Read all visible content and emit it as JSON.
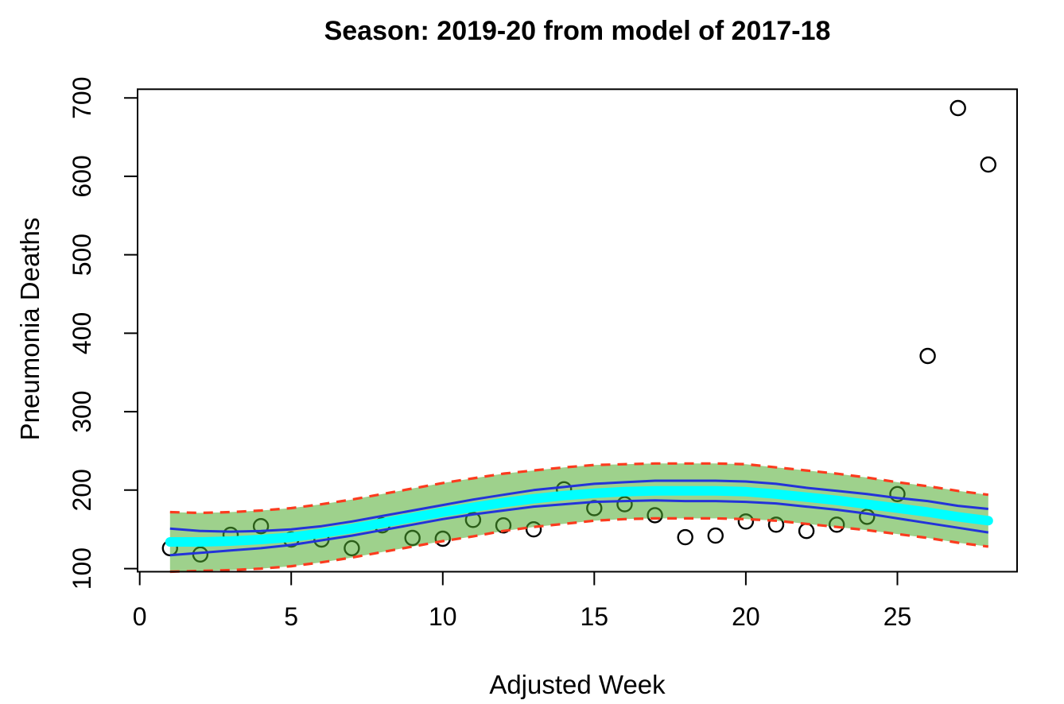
{
  "figure": {
    "title": "Season: 2019-20 from model of 2017-18",
    "x_axis_label": "Adjusted Week",
    "y_axis_label": "Pneumonia Deaths"
  },
  "chart_data": {
    "type": "scatter",
    "title": "Season: 2019-20 from model of 2017-18",
    "xlabel": "Adjusted Week",
    "ylabel": "Pneumonia Deaths",
    "xlim": [
      -0.07,
      28.95
    ],
    "ylim": [
      96,
      711
    ],
    "x_ticks": [
      0,
      5,
      10,
      15,
      20,
      25
    ],
    "y_ticks": [
      100,
      200,
      300,
      400,
      500,
      600,
      700
    ],
    "grid": false,
    "legend_position": "none",
    "weeks": [
      1,
      2,
      3,
      4,
      5,
      6,
      7,
      8,
      9,
      10,
      11,
      12,
      13,
      14,
      15,
      16,
      17,
      18,
      19,
      20,
      21,
      22,
      23,
      24,
      25,
      26,
      27,
      28
    ],
    "observed": [
      126,
      118,
      143,
      154,
      137,
      137,
      126,
      155,
      139,
      138,
      162,
      155,
      150,
      201,
      177,
      182,
      168,
      140,
      142,
      160,
      156,
      148,
      156,
      166,
      195,
      371,
      687,
      615
    ],
    "fit": [
      134,
      134,
      135,
      137,
      140,
      145,
      151,
      158,
      165,
      172,
      178,
      184,
      189,
      193,
      196,
      198,
      199,
      199,
      199,
      198,
      195,
      191,
      187,
      182,
      177,
      172,
      166,
      161
    ],
    "inner_upper": [
      151,
      148,
      147,
      148,
      150,
      154,
      160,
      167,
      174,
      181,
      188,
      194,
      200,
      204,
      208,
      210,
      212,
      212,
      212,
      211,
      208,
      203,
      199,
      195,
      190,
      186,
      180,
      176
    ],
    "inner_lower": [
      117,
      120,
      123,
      126,
      130,
      136,
      142,
      149,
      156,
      163,
      169,
      174,
      179,
      182,
      185,
      186,
      187,
      186,
      186,
      185,
      183,
      179,
      175,
      170,
      164,
      158,
      152,
      146
    ],
    "outer_upper": [
      172,
      171,
      172,
      174,
      177,
      182,
      188,
      195,
      202,
      209,
      215,
      221,
      225,
      229,
      232,
      233,
      234,
      234,
      234,
      233,
      229,
      225,
      221,
      216,
      210,
      205,
      199,
      194
    ],
    "outer_lower": [
      96,
      97,
      98,
      100,
      103,
      108,
      114,
      121,
      128,
      135,
      141,
      148,
      153,
      157,
      161,
      163,
      164,
      164,
      164,
      163,
      161,
      157,
      153,
      149,
      144,
      139,
      133,
      128
    ],
    "series_names": [
      "observed-points",
      "fitted-line",
      "inner-interval",
      "outer-prediction-interval"
    ],
    "colors": {
      "band_fill": "#4FAB2D",
      "band_fill_opacity": 0.55,
      "outer_border": "#FB3B1E",
      "inner_line": "#2333D9",
      "fit_line": "#00FFFF",
      "point_stroke": "#000000",
      "axis": "#000000"
    }
  }
}
